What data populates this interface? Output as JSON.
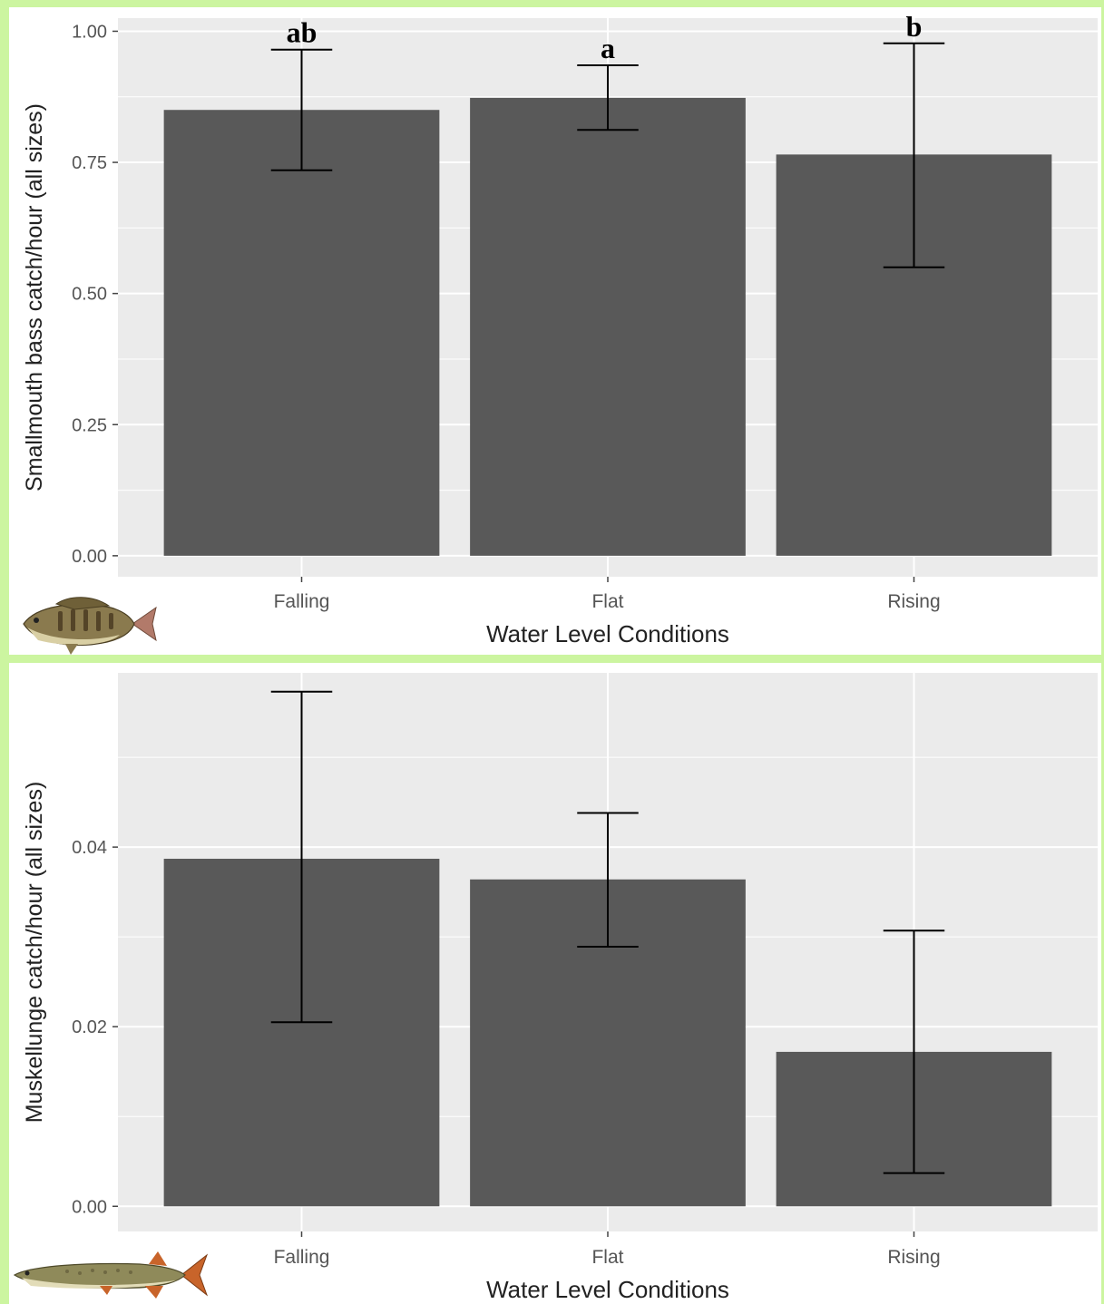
{
  "colors": {
    "frame": "#ccf5a0",
    "panel_background": "#ebebeb",
    "grid": "#ffffff",
    "bar": "#595959",
    "error_bar": "#000000"
  },
  "icons": [
    "smallmouth-bass-icon",
    "muskellunge-icon"
  ],
  "chart_data": [
    {
      "type": "bar",
      "title": "",
      "xlabel": "Water Level Conditions",
      "ylabel": "Smallmouth bass catch/hour (all sizes)",
      "categories": [
        "Falling",
        "Flat",
        "Rising"
      ],
      "values": [
        0.85,
        0.873,
        0.765
      ],
      "error_low": [
        0.735,
        0.812,
        0.55
      ],
      "error_high": [
        0.965,
        0.935,
        0.977
      ],
      "significance_letters": [
        "ab",
        "a",
        "b"
      ],
      "ylim": [
        -0.04,
        1.025
      ],
      "yticks": [
        0.0,
        0.25,
        0.5,
        0.75,
        1.0
      ],
      "ytick_labels": [
        "0.00",
        "0.25",
        "0.50",
        "0.75",
        "1.00"
      ],
      "grid": true,
      "legend": "none"
    },
    {
      "type": "bar",
      "title": "",
      "xlabel": "Water Level Conditions",
      "ylabel": "Muskellunge catch/hour (all sizes)",
      "categories": [
        "Falling",
        "Flat",
        "Rising"
      ],
      "values": [
        0.0387,
        0.0364,
        0.0172
      ],
      "error_low": [
        0.0205,
        0.0289,
        0.0037
      ],
      "error_high": [
        0.0573,
        0.0438,
        0.0307
      ],
      "significance_letters": [],
      "ylim": [
        -0.0028,
        0.0594
      ],
      "yticks": [
        0.0,
        0.02,
        0.04
      ],
      "ytick_labels": [
        "0.00",
        "0.02",
        "0.04"
      ],
      "grid": true,
      "legend": "none"
    }
  ]
}
